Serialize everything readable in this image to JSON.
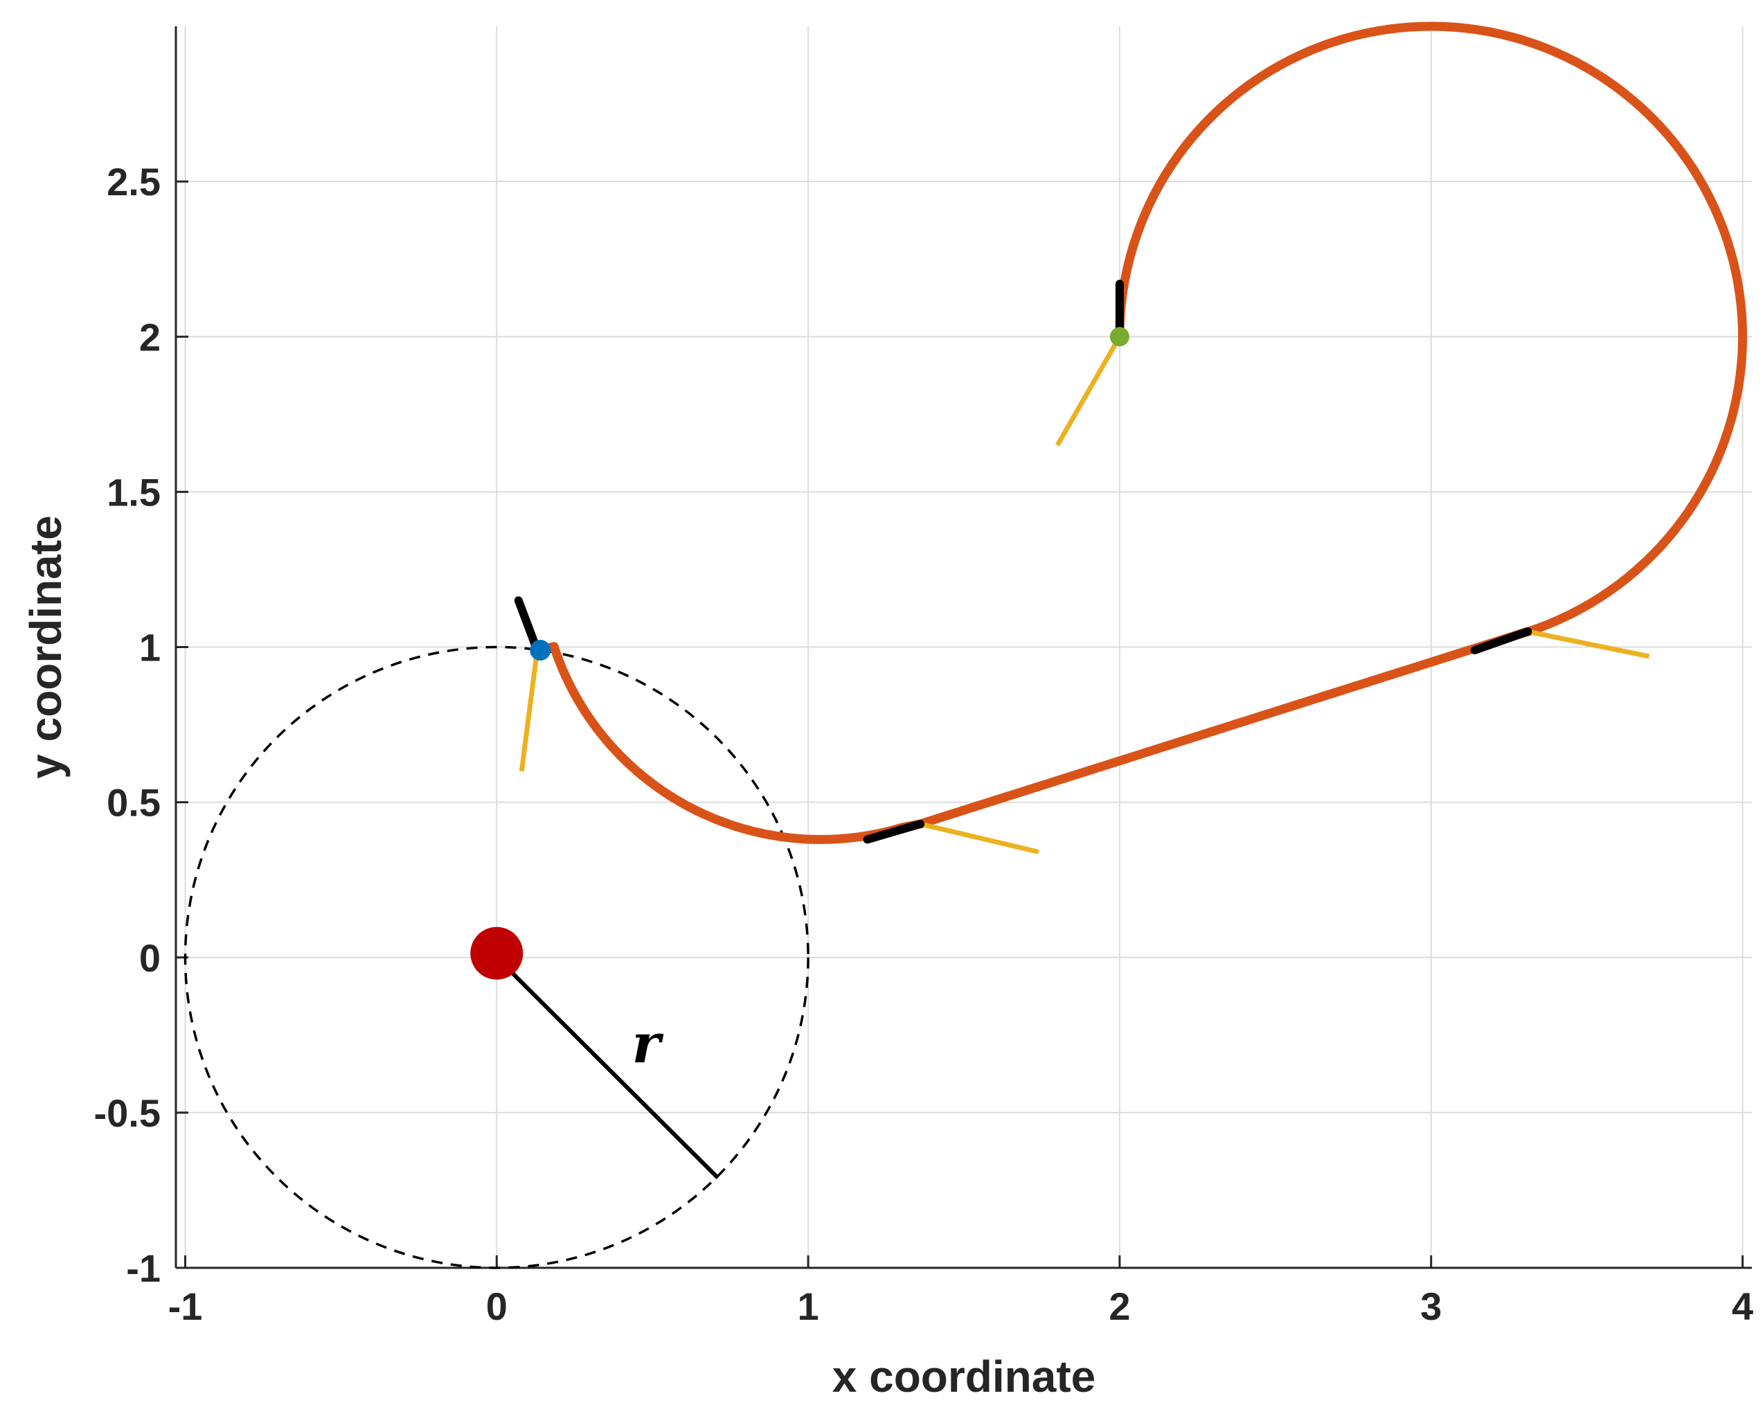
{
  "chart_data": {
    "type": "line",
    "xlabel": "x coordinate",
    "ylabel": "y coordinate",
    "xlim": [
      -1.03,
      4.03
    ],
    "ylim": [
      -1.0,
      3.0
    ],
    "xticks": [
      -1,
      0,
      1,
      2,
      3,
      4
    ],
    "xtick_labels": [
      "-1",
      "0",
      "1",
      "2",
      "3",
      "4"
    ],
    "yticks": [
      -1,
      -0.5,
      0,
      0.5,
      1,
      1.5,
      2,
      2.5
    ],
    "ytick_labels": [
      "-1",
      "-0.5",
      "0",
      "0.5",
      "1",
      "1.5",
      "2",
      "2.5"
    ],
    "grid": true,
    "colors": {
      "path": "#D95319",
      "heading": "#000000",
      "steering": "#EDB120",
      "start_point": "#0072BD",
      "end_point": "#77AC30",
      "obstacle": "#C00000",
      "circle": "#000000",
      "axes": "#262626",
      "grid": "#DCDCDC"
    },
    "circle": {
      "center": [
        0,
        0
      ],
      "radius": 1.0,
      "style": "dashed"
    },
    "obstacle": {
      "x": 0,
      "y": 0
    },
    "radius_line": {
      "from": [
        0,
        0
      ],
      "to": [
        0.71,
        -0.71
      ]
    },
    "annotation": {
      "text": "r",
      "x": 0.48,
      "y": -0.27
    },
    "path": {
      "start": {
        "x": 0.13,
        "y": 0.99
      },
      "arc1": {
        "center": [
          1.04,
          1.28
        ],
        "radius": 0.9,
        "from_deg": 198,
        "to_deg": 287
      },
      "line": {
        "from": [
          1.36,
          0.43
        ],
        "to": [
          3.31,
          1.05
        ]
      },
      "arc2": {
        "center": [
          3.0,
          2.0
        ],
        "radius": 1.0,
        "from_deg": -72,
        "to_deg": 180
      },
      "end": {
        "x": 2.0,
        "y": 2.0
      }
    },
    "heading_segments": [
      {
        "from": [
          0.13,
          0.99
        ],
        "to": [
          0.07,
          1.15
        ]
      },
      {
        "from": [
          1.36,
          0.43
        ],
        "to": [
          1.19,
          0.38
        ]
      },
      {
        "from": [
          3.31,
          1.05
        ],
        "to": [
          3.14,
          0.99
        ]
      },
      {
        "from": [
          2.0,
          2.0
        ],
        "to": [
          2.0,
          2.17
        ]
      }
    ],
    "steering_segments": [
      {
        "from": [
          0.13,
          0.99
        ],
        "to": [
          0.08,
          0.6
        ]
      },
      {
        "from": [
          1.36,
          0.43
        ],
        "to": [
          1.74,
          0.34
        ]
      },
      {
        "from": [
          3.31,
          1.05
        ],
        "to": [
          3.7,
          0.97
        ]
      },
      {
        "from": [
          2.0,
          2.0
        ],
        "to": [
          1.8,
          1.65
        ]
      }
    ],
    "markers": [
      {
        "name": "start",
        "x": 0.14,
        "y": 0.99
      },
      {
        "name": "end",
        "x": 2.0,
        "y": 2.0
      },
      {
        "name": "junction1",
        "x": 1.36,
        "y": 0.43
      },
      {
        "name": "junction2",
        "x": 3.31,
        "y": 1.05
      }
    ]
  }
}
